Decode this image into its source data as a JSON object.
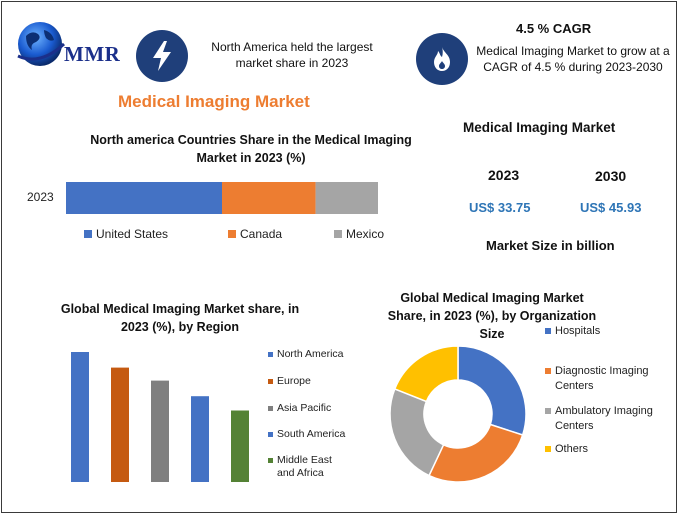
{
  "brand": {
    "logo_text": "MMR"
  },
  "header": {
    "stat1_text": "North America held the largest market share in 2023",
    "cagr_title": "4.5 % CAGR",
    "cagr_text": "Medical Imaging Market to grow at a CAGR of 4.5 % during 2023-2030"
  },
  "main_title": "Medical Imaging Market",
  "market_size": {
    "title": "Medical Imaging Market",
    "year1": "2023",
    "year2": "2030",
    "value1": "US$ 33.75",
    "value2": "US$ 45.93",
    "caption": "Market Size in billion"
  },
  "colors": {
    "blue": "#4472c4",
    "orange": "#ed7d31",
    "gray": "#a5a5a5",
    "gold": "#ffc000",
    "green": "#548235",
    "darkorange": "#c55a11",
    "navy": "#1f3f7a"
  },
  "chart_data": [
    {
      "type": "bar",
      "orientation": "horizontal-stacked",
      "title": "North america Countries Share in the  Medical Imaging Market in 2023 (%)",
      "categories": [
        "2023"
      ],
      "series": [
        {
          "name": "United States",
          "values": [
            50
          ],
          "color": "#4472c4"
        },
        {
          "name": "Canada",
          "values": [
            30
          ],
          "color": "#ed7d31"
        },
        {
          "name": "Mexico",
          "values": [
            20
          ],
          "color": "#a5a5a5"
        }
      ],
      "legend": "bottom"
    },
    {
      "type": "bar",
      "title": "Global Medical Imaging Market share, in 2023 (%), by Region",
      "categories": [
        "North America",
        "Europe",
        "Asia Pacific",
        "South America",
        "Middle East and Africa"
      ],
      "values": [
        100,
        88,
        78,
        66,
        55
      ],
      "colors": [
        "#4472c4",
        "#c55a11",
        "#7f7f7f",
        "#4472c4",
        "#548235"
      ],
      "legend": "right"
    },
    {
      "type": "pie",
      "style": "donut",
      "title": "Global Medical Imaging Market Share, in 2023 (%), by Organization Size",
      "labels": [
        "Hospitals",
        "Diagnostic Imaging Centers",
        "Ambulatory Imaging Centers",
        "Others"
      ],
      "values": [
        30,
        27,
        24,
        19
      ],
      "colors": [
        "#4472c4",
        "#ed7d31",
        "#a5a5a5",
        "#ffc000"
      ],
      "legend": "right"
    }
  ]
}
